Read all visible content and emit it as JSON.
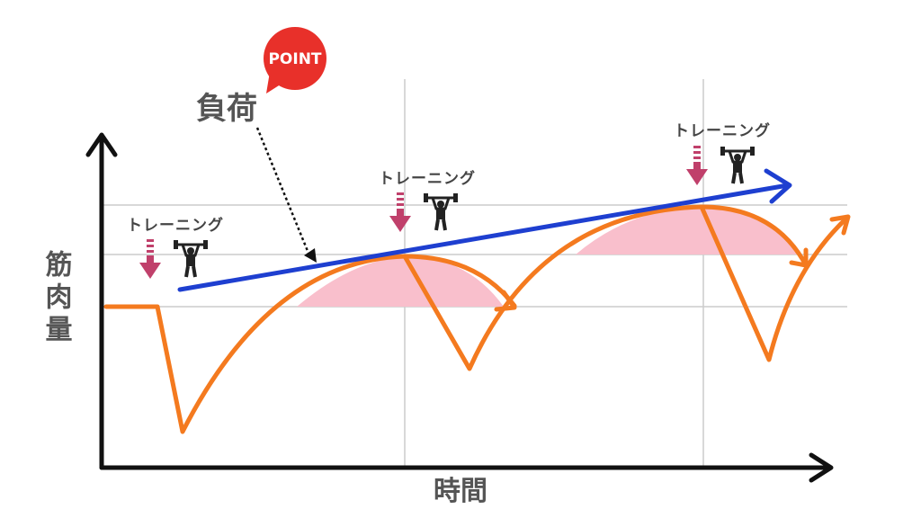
{
  "badge": "POINT",
  "load_label": "負荷",
  "training_labels": [
    "トレーニング",
    "トレーニング",
    "トレーニング"
  ],
  "y_axis_label": "筋肉量",
  "x_axis_label": "時間"
}
